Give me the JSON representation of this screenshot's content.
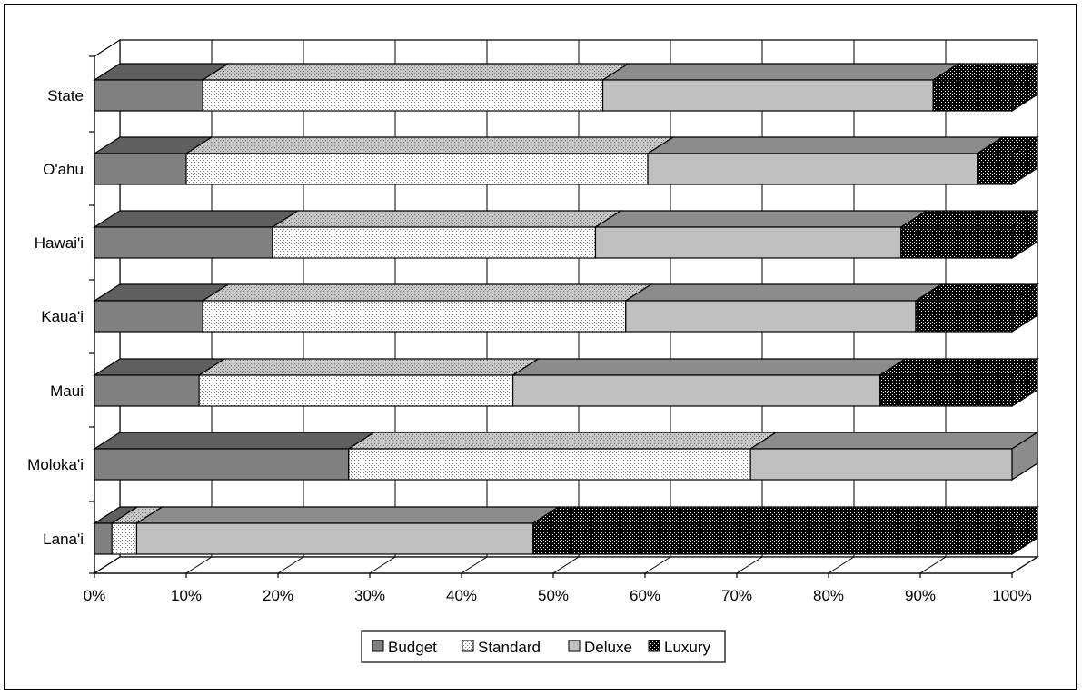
{
  "chart_data": {
    "type": "bar",
    "orientation": "horizontal",
    "stacked": true,
    "percent_stacked": true,
    "three_d": true,
    "categories": [
      "State",
      "O'ahu",
      "Hawai'i",
      "Kaua'i",
      "Maui",
      "Moloka'i",
      "Lana'i"
    ],
    "series": [
      {
        "name": "Budget",
        "values": [
          11.8,
          10.0,
          19.4,
          11.8,
          11.4,
          27.7,
          1.9
        ]
      },
      {
        "name": "Standard",
        "values": [
          43.6,
          50.3,
          35.2,
          46.1,
          34.2,
          43.8,
          2.7
        ]
      },
      {
        "name": "Deluxe",
        "values": [
          36.0,
          35.9,
          33.3,
          31.6,
          40.0,
          28.5,
          43.2
        ]
      },
      {
        "name": "Luxury",
        "values": [
          8.6,
          3.8,
          12.1,
          10.5,
          14.4,
          0.0,
          52.2
        ]
      }
    ],
    "x_tick_labels": [
      "0%",
      "10%",
      "20%",
      "30%",
      "40%",
      "50%",
      "60%",
      "70%",
      "80%",
      "90%",
      "100%"
    ],
    "xlim": [
      0,
      100
    ],
    "grid": true,
    "legend_position": "bottom",
    "title": "",
    "xlabel": "",
    "ylabel": ""
  },
  "colors": {
    "budget_front": "#808080",
    "budget_top": "#5f5f5f",
    "standard_front": "#ffffff",
    "standard_top": "#c0c0c0",
    "deluxe_front": "#c0c0c0",
    "deluxe_top": "#8c8c8c",
    "luxury_front": "#000000",
    "luxury_top": "#000000",
    "grid": "#000000",
    "wall": "#ffffff"
  }
}
